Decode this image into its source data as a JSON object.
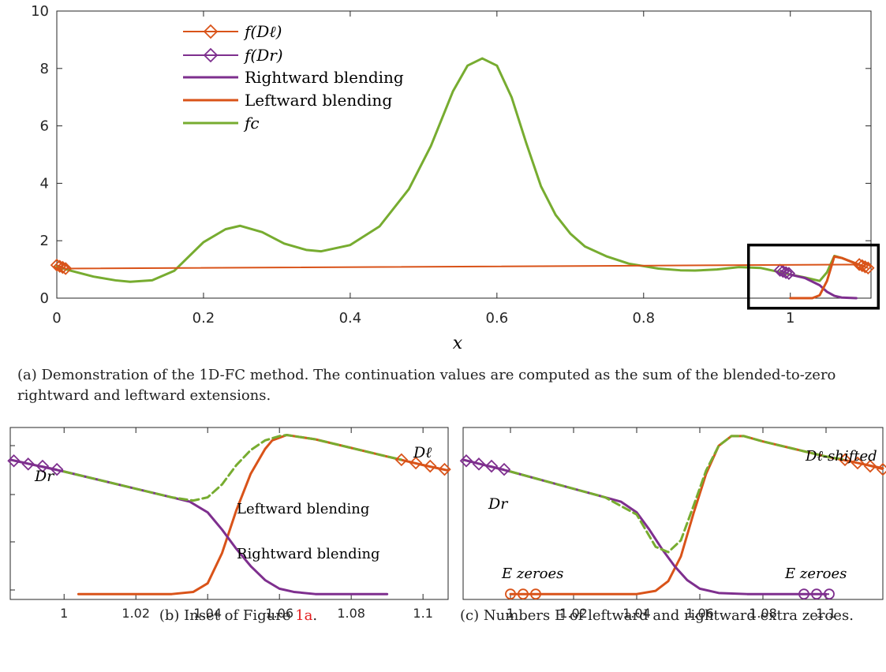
{
  "colors": {
    "orange": "#d95319",
    "purple": "#7e2f8e",
    "green": "#77ac30",
    "axis": "#262626"
  },
  "chart_data": [
    {
      "id": "a",
      "type": "line",
      "title": "",
      "xlabel": "x",
      "ylabel": "",
      "xlim": [
        0,
        1.11
      ],
      "ylim": [
        0,
        10
      ],
      "xticks": [
        0,
        0.2,
        0.4,
        0.6,
        0.8,
        1
      ],
      "xtick_labels": [
        "0",
        "0.2",
        "0.4",
        "0.6",
        "0.8",
        "1"
      ],
      "yticks": [
        0,
        2,
        4,
        6,
        8,
        10
      ],
      "ytick_labels": [
        "0",
        "2",
        "4",
        "6",
        "8",
        "10"
      ],
      "grid": false,
      "legend_position": "top-left",
      "legend": [
        "f(Dℓ)",
        "f(Dr)",
        "Rightward blending",
        "Leftward blending",
        "fc"
      ],
      "series": [
        {
          "name": "fc",
          "color": "#77ac30",
          "x": [
            0,
            0.02,
            0.05,
            0.08,
            0.1,
            0.13,
            0.16,
            0.2,
            0.23,
            0.25,
            0.28,
            0.31,
            0.34,
            0.36,
            0.4,
            0.44,
            0.48,
            0.51,
            0.54,
            0.56,
            0.58,
            0.6,
            0.62,
            0.64,
            0.66,
            0.68,
            0.7,
            0.72,
            0.75,
            0.78,
            0.82,
            0.85,
            0.87,
            0.9,
            0.93,
            0.96,
            0.99,
            1.0,
            1.02,
            1.04,
            1.05,
            1.06,
            1.07,
            1.08,
            1.09,
            1.1
          ],
          "y": [
            1.1,
            0.95,
            0.75,
            0.62,
            0.57,
            0.62,
            0.95,
            1.95,
            2.4,
            2.52,
            2.3,
            1.9,
            1.68,
            1.63,
            1.85,
            2.5,
            3.8,
            5.3,
            7.2,
            8.1,
            8.35,
            8.1,
            7.0,
            5.4,
            3.9,
            2.9,
            2.25,
            1.8,
            1.45,
            1.2,
            1.03,
            0.97,
            0.96,
            1.0,
            1.08,
            1.05,
            0.88,
            0.82,
            0.72,
            0.6,
            0.9,
            1.47,
            1.4,
            1.3,
            1.2,
            1.1
          ]
        },
        {
          "name": "Rightward blending",
          "color": "#7e2f8e",
          "x": [
            1.0,
            1.02,
            1.04,
            1.05,
            1.06,
            1.07,
            1.09
          ],
          "y": [
            0.82,
            0.7,
            0.45,
            0.22,
            0.08,
            0.02,
            0.0
          ]
        },
        {
          "name": "Leftward blending",
          "color": "#d95319",
          "x": [
            1.0,
            1.03,
            1.04,
            1.05,
            1.06,
            1.07,
            1.08,
            1.09,
            1.1
          ],
          "y": [
            0.0,
            0.0,
            0.1,
            0.6,
            1.45,
            1.4,
            1.3,
            1.2,
            1.1
          ]
        },
        {
          "name": "f(Dr)",
          "color": "#7e2f8e",
          "marker": "diamond",
          "x": [
            0.986,
            0.99,
            0.994,
            0.998
          ],
          "y": [
            0.97,
            0.93,
            0.89,
            0.86
          ]
        },
        {
          "name": "f(Dℓ)",
          "color": "#d95319",
          "marker": "diamond",
          "x": [
            0.0,
            0.004,
            0.008,
            0.012,
            1.094,
            1.098,
            1.102,
            1.106
          ],
          "y": [
            1.15,
            1.11,
            1.07,
            1.03,
            1.17,
            1.13,
            1.09,
            1.05
          ]
        }
      ],
      "inset_box": {
        "x": [
          0.943,
          1.12
        ],
        "y": [
          -0.35,
          1.85
        ]
      }
    },
    {
      "id": "b",
      "type": "line",
      "title": "",
      "xlabel": "",
      "ylabel": "",
      "xlim": [
        0.985,
        1.107
      ],
      "ylim": [
        -0.05,
        1.55
      ],
      "xticks": [
        1,
        1.02,
        1.04,
        1.06,
        1.08,
        1.1
      ],
      "xtick_labels": [
        "1",
        "1.02",
        "1.04",
        "1.06",
        "1.08",
        "1.1"
      ],
      "grid": false,
      "annotations": [
        {
          "text": "Leftward blending",
          "x": 1.054,
          "y": 0.95
        },
        {
          "text": "Rightward blending",
          "x": 1.059,
          "y": 0.43
        }
      ],
      "series": [
        {
          "name": "Leftward blending",
          "color": "#d95319",
          "x": [
            1.004,
            1.03,
            1.036,
            1.04,
            1.044,
            1.048,
            1.052,
            1.056,
            1.058,
            1.062,
            1.07,
            1.08,
            1.09,
            1.1,
            1.107
          ],
          "y": [
            0.0,
            0.0,
            0.02,
            0.1,
            0.38,
            0.78,
            1.12,
            1.35,
            1.43,
            1.48,
            1.44,
            1.36,
            1.28,
            1.2,
            1.15
          ]
        },
        {
          "name": "Rightward blending",
          "color": "#7e2f8e",
          "x": [
            0.985,
            1.0,
            1.01,
            1.02,
            1.03,
            1.035,
            1.04,
            1.044,
            1.048,
            1.052,
            1.056,
            1.06,
            1.064,
            1.07,
            1.09
          ],
          "y": [
            1.25,
            1.14,
            1.06,
            0.98,
            0.9,
            0.86,
            0.76,
            0.6,
            0.42,
            0.26,
            0.13,
            0.05,
            0.02,
            0.0,
            0.0
          ]
        },
        {
          "name": "fc",
          "color": "#77ac30",
          "dashed": true,
          "x": [
            1.0,
            1.01,
            1.02,
            1.03,
            1.036,
            1.04,
            1.044,
            1.048,
            1.052,
            1.056,
            1.06,
            1.062,
            1.07,
            1.08,
            1.09,
            1.094
          ],
          "y": [
            1.14,
            1.06,
            0.98,
            0.9,
            0.87,
            0.9,
            1.02,
            1.2,
            1.34,
            1.43,
            1.47,
            1.48,
            1.44,
            1.36,
            1.28,
            1.25
          ]
        },
        {
          "name": "Dr",
          "color": "#7e2f8e",
          "marker": "diamond",
          "x": [
            0.986,
            0.99,
            0.994,
            0.998
          ],
          "y": [
            1.24,
            1.21,
            1.19,
            1.16
          ]
        },
        {
          "name": "Dℓ",
          "color": "#d95319",
          "marker": "diamond",
          "x": [
            1.094,
            1.098,
            1.102,
            1.106
          ],
          "y": [
            1.25,
            1.22,
            1.19,
            1.16
          ]
        }
      ]
    },
    {
      "id": "c",
      "type": "line",
      "title": "",
      "xlabel": "",
      "ylabel": "",
      "xlim": [
        0.985,
        1.118
      ],
      "ylim": [
        -0.05,
        1.55
      ],
      "xticks": [
        1,
        1.02,
        1.04,
        1.06,
        1.08,
        1.1
      ],
      "xtick_labels": [
        "1",
        "1.02",
        "1.04",
        "1.06",
        "1.08",
        "1.1"
      ],
      "grid": false,
      "annotations": [
        {
          "text": "E zeroes",
          "x": 1.014,
          "y": 0.12
        },
        {
          "text": "E zeroes",
          "x": 1.1,
          "y": 0.12
        }
      ],
      "series": [
        {
          "name": "Leftward blending",
          "color": "#d95319",
          "x": [
            1.0,
            1.04,
            1.046,
            1.05,
            1.054,
            1.058,
            1.062,
            1.066,
            1.07,
            1.074,
            1.08,
            1.09,
            1.1,
            1.11,
            1.118
          ],
          "y": [
            0.0,
            0.0,
            0.03,
            0.12,
            0.35,
            0.75,
            1.12,
            1.38,
            1.47,
            1.47,
            1.42,
            1.35,
            1.28,
            1.22,
            1.17
          ]
        },
        {
          "name": "Rightward blending",
          "color": "#7e2f8e",
          "x": [
            0.985,
            1.0,
            1.01,
            1.02,
            1.03,
            1.035,
            1.04,
            1.044,
            1.048,
            1.052,
            1.056,
            1.06,
            1.066,
            1.075,
            1.1
          ],
          "y": [
            1.25,
            1.14,
            1.06,
            0.98,
            0.9,
            0.86,
            0.76,
            0.6,
            0.42,
            0.26,
            0.13,
            0.05,
            0.01,
            0.0,
            0.0
          ]
        },
        {
          "name": "fc",
          "color": "#77ac30",
          "dashed": true,
          "x": [
            1.0,
            1.01,
            1.02,
            1.03,
            1.04,
            1.046,
            1.05,
            1.054,
            1.058,
            1.062,
            1.066,
            1.07,
            1.074,
            1.08,
            1.09,
            1.1,
            1.106
          ],
          "y": [
            1.14,
            1.06,
            0.98,
            0.9,
            0.74,
            0.44,
            0.39,
            0.5,
            0.82,
            1.15,
            1.38,
            1.47,
            1.47,
            1.42,
            1.35,
            1.28,
            1.25
          ]
        },
        {
          "name": "Dr",
          "color": "#7e2f8e",
          "marker": "diamond",
          "x": [
            0.986,
            0.99,
            0.994,
            0.998
          ],
          "y": [
            1.24,
            1.21,
            1.19,
            1.16
          ]
        },
        {
          "name": "Dℓ-shifted",
          "color": "#d95319",
          "marker": "diamond",
          "x": [
            1.106,
            1.11,
            1.114,
            1.118
          ],
          "y": [
            1.25,
            1.22,
            1.19,
            1.16
          ]
        },
        {
          "name": "E zeroes left",
          "color": "#d95319",
          "marker": "circle",
          "x": [
            1.0,
            1.004,
            1.008
          ],
          "y": [
            0.0,
            0.0,
            0.0
          ]
        },
        {
          "name": "E zeroes right",
          "color": "#7e2f8e",
          "marker": "circle",
          "x": [
            1.093,
            1.097,
            1.101
          ],
          "y": [
            0.0,
            0.0,
            0.0
          ]
        }
      ]
    }
  ],
  "labels": {
    "xlabel_a": "x",
    "legend_fdl": "f(Dℓ)",
    "legend_fdr": "f(Dr)",
    "legend_rightward": "Rightward blending",
    "legend_leftward": "Leftward blending",
    "legend_fc": "fc",
    "b_leftward": "Leftward blending",
    "b_rightward": "Rightward blending",
    "b_dr": "Dr",
    "b_dl": "Dℓ",
    "c_dr": "Dr",
    "c_dl_shifted": "Dℓ-shifted",
    "c_ezeros_left": "E zeroes",
    "c_ezeros_right": "E zeroes"
  },
  "captions": {
    "a_prefix": "(a) Demonstration of the 1D-FC method. The continuation values are computed as the sum of the blended-to-zero rightward and leftward extensions.",
    "b_prefix": "(b) Inset of Figure ",
    "b_ref": "1a",
    "b_suffix": ".",
    "c_text": "(c) Numbers E of leftward and rightward extra zeroes."
  }
}
